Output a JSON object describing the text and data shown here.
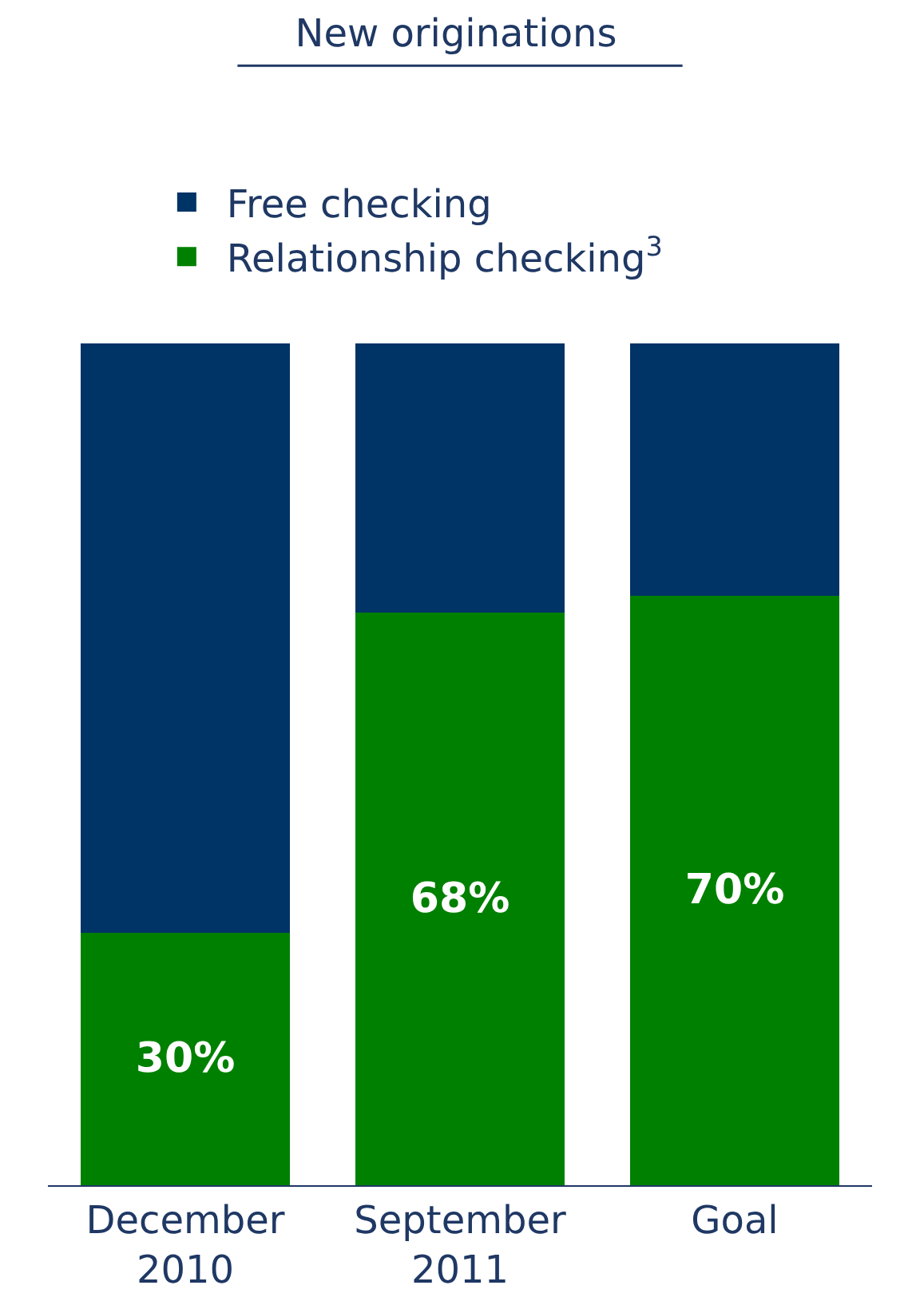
{
  "chart_data": {
    "type": "bar",
    "title": "New originations",
    "categories": [
      "December 2010",
      "September 2011",
      "Goal"
    ],
    "stacked": true,
    "ylim": [
      0,
      100
    ],
    "tick_labels": "x",
    "legend": "top",
    "series": [
      {
        "name": "Relationship checking$^{3}$",
        "color": "#008000",
        "values": [
          30,
          68,
          70
        ],
        "value_labels": [
          "30%",
          "68%",
          "70%"
        ]
      },
      {
        "name": "Free checking",
        "color": "#003366",
        "values": [
          70,
          32,
          30
        ]
      }
    ]
  }
}
